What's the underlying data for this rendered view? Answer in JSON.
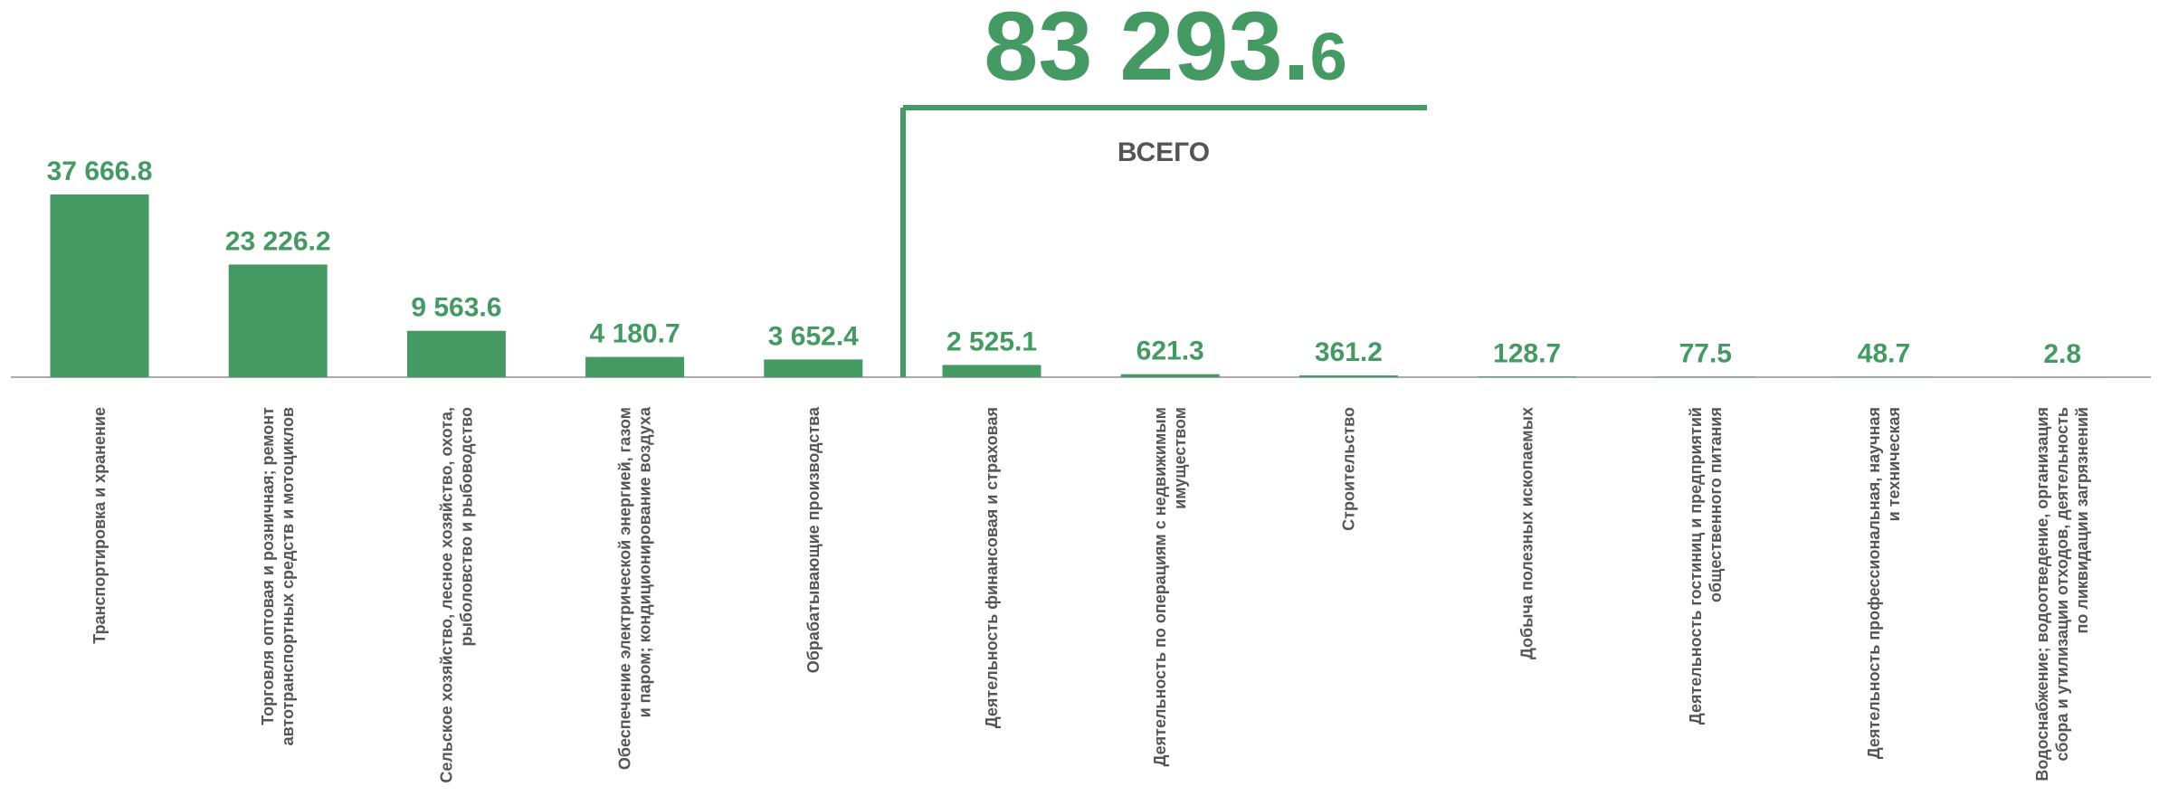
{
  "chart_data": {
    "type": "bar",
    "categories": [
      "Транспортировка и хранение",
      "Торговля оптовая и розничная; ремонт\nавтотранспортных средств и мотоциклов",
      "Сельское хозяйство, лесное хозяйство, охота,\nрыболовство и рыбоводство",
      "Обеспечение электрической энергией, газом\nи паром; кондиционирование воздуха",
      "Обрабатывающие производства",
      "Деятельность финансовая и страховая",
      "Деятельность по операциям с недвижимым\nимуществом",
      "Строительство",
      "Добыча полезных ископаемых",
      "Деятельность гостиниц и предприятий\nобщественного питания",
      "Деятельность профессиональная, научная\nи техническая",
      "Водоснабжение; водоотведение, организация\nсбора и утилизации отходов, деятельность\nпо ликвидации загрязнений"
    ],
    "values": [
      37666.8,
      23226.2,
      9563.6,
      4180.7,
      3652.4,
      2525.1,
      621.3,
      361.2,
      128.7,
      77.5,
      48.7,
      2.8
    ],
    "value_labels": [
      "37 666.8",
      "23 226.2",
      "9 563.6",
      "4 180.7",
      "3 652.4",
      "2 525.1",
      "621.3",
      "361.2",
      "128.7",
      "77.5",
      "48.7",
      "2.8"
    ],
    "color": "#459963",
    "ylim": [
      0,
      40000
    ],
    "total": 83293.6,
    "total_label": [
      "83 293.",
      "6"
    ],
    "total_caption": "ВСЕГО"
  }
}
